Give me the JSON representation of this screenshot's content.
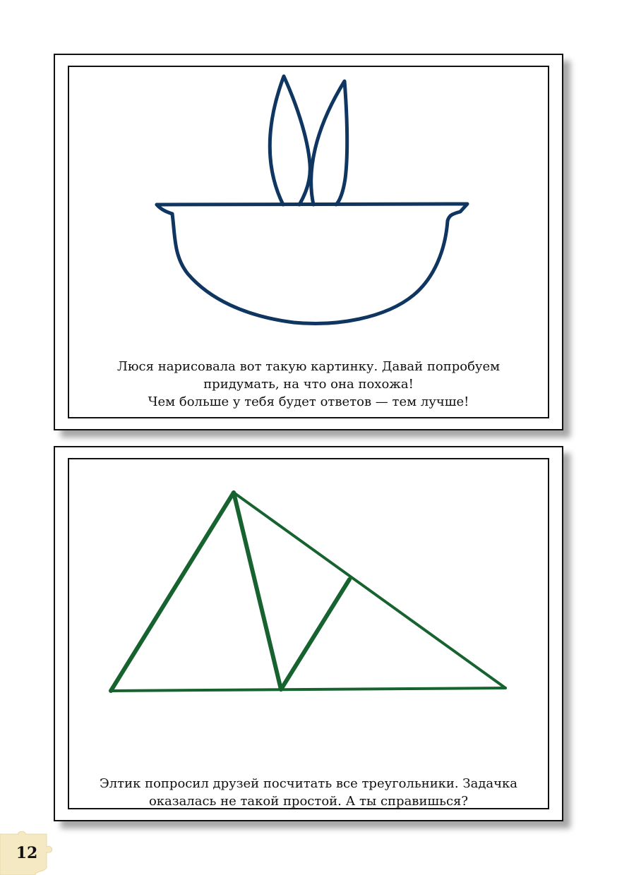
{
  "cards": [
    {
      "caption": "Люся нарисовала вот такую картинку. Давай попробуем\nпридумать, на что она похожа!\nЧем больше у тебя будет ответов — тем лучше!",
      "drawing": "bowl-with-leaves",
      "stroke_color": "#0f3561"
    },
    {
      "caption": "Элтик попросил друзей посчитать все треугольники. Задачка\nоказалась не такой простой. А ты справишься?",
      "drawing": "triangles-figure",
      "stroke_color": "#17632f"
    }
  ],
  "page_number": "12",
  "page_number_bg": "#f5e9c3"
}
